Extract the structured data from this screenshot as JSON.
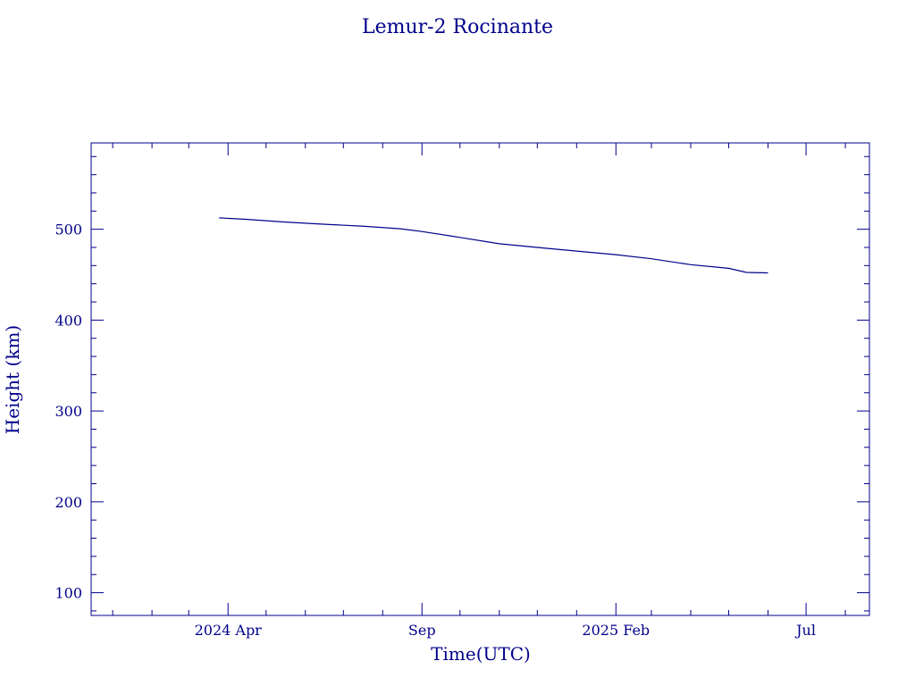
{
  "chart_data": {
    "type": "line",
    "title": "Lemur-2 Rocinante",
    "xlabel": "Time(UTC)",
    "ylabel": "Height (km)",
    "colors": {
      "axes": "#00008b",
      "line": "#00008b",
      "background": "#ffffff"
    },
    "xlim": [
      "2023-12-15",
      "2025-08-20"
    ],
    "ylim": [
      75,
      595
    ],
    "x_ticks": [
      {
        "date": "2024-04-01",
        "label": "2024 Apr"
      },
      {
        "date": "2024-09-01",
        "label": "Sep"
      },
      {
        "date": "2025-02-01",
        "label": "2025 Feb"
      },
      {
        "date": "2025-07-01",
        "label": "Jul"
      }
    ],
    "x_minor_ticks": [
      "2024-01-01",
      "2024-02-01",
      "2024-03-01",
      "2024-05-01",
      "2024-06-01",
      "2024-07-01",
      "2024-08-01",
      "2024-10-01",
      "2024-11-01",
      "2024-12-01",
      "2025-01-01",
      "2025-03-01",
      "2025-04-01",
      "2025-05-01",
      "2025-06-01",
      "2025-08-01"
    ],
    "y_ticks": [
      {
        "value": 100,
        "label": "100"
      },
      {
        "value": 200,
        "label": "200"
      },
      {
        "value": 300,
        "label": "300"
      },
      {
        "value": 400,
        "label": "400"
      },
      {
        "value": 500,
        "label": "500"
      }
    ],
    "y_minor_step": 20,
    "grid": false,
    "series": [
      {
        "x": [
          "2024-03-25",
          "2024-04-15",
          "2024-05-15",
          "2024-06-15",
          "2024-07-15",
          "2024-08-15",
          "2024-09-01",
          "2024-10-01",
          "2024-11-01",
          "2024-12-01",
          "2025-01-01",
          "2025-02-01",
          "2025-03-01",
          "2025-04-01",
          "2025-05-01",
          "2025-05-15",
          "2025-06-01"
        ],
        "y": [
          512.5,
          511,
          508,
          505.5,
          503.5,
          500.5,
          497.5,
          491,
          484,
          480,
          476,
          472,
          467.5,
          461,
          457,
          452.5,
          452
        ]
      }
    ]
  }
}
